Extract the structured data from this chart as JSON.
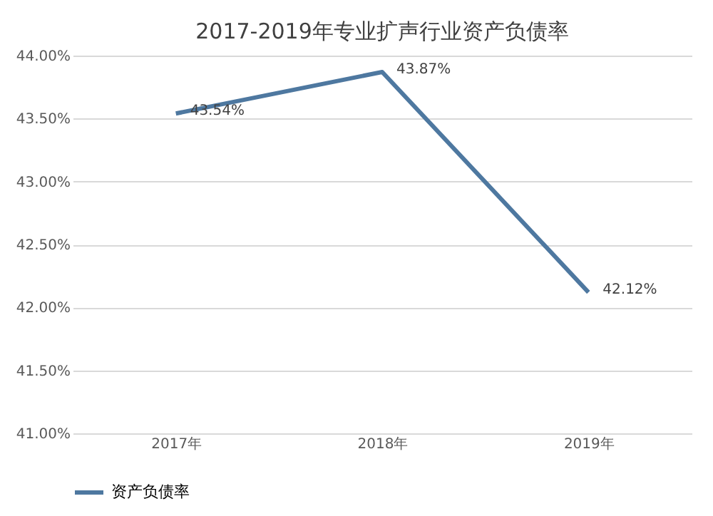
{
  "chart_data": {
    "type": "line",
    "title": "2017-2019年专业扩声行业资产负债率",
    "categories": [
      "2017年",
      "2018年",
      "2019年"
    ],
    "series": [
      {
        "name": "资产负债率",
        "color": "#4e78a0",
        "values": [
          43.54,
          43.87,
          42.12
        ],
        "value_labels": [
          "43.54%",
          "43.87%",
          "42.12%"
        ]
      }
    ],
    "ylim": [
      41.0,
      44.0
    ],
    "yticks": [
      {
        "value": 41.0,
        "label": "41.00%"
      },
      {
        "value": 41.5,
        "label": "41.50%"
      },
      {
        "value": 42.0,
        "label": "42.00%"
      },
      {
        "value": 42.5,
        "label": "42.50%"
      },
      {
        "value": 43.0,
        "label": "43.00%"
      },
      {
        "value": 43.5,
        "label": "43.50%"
      },
      {
        "value": 44.0,
        "label": "44.00%"
      }
    ],
    "grid": "y",
    "legend": "bottom",
    "marker": "none",
    "line_style": "solid"
  }
}
